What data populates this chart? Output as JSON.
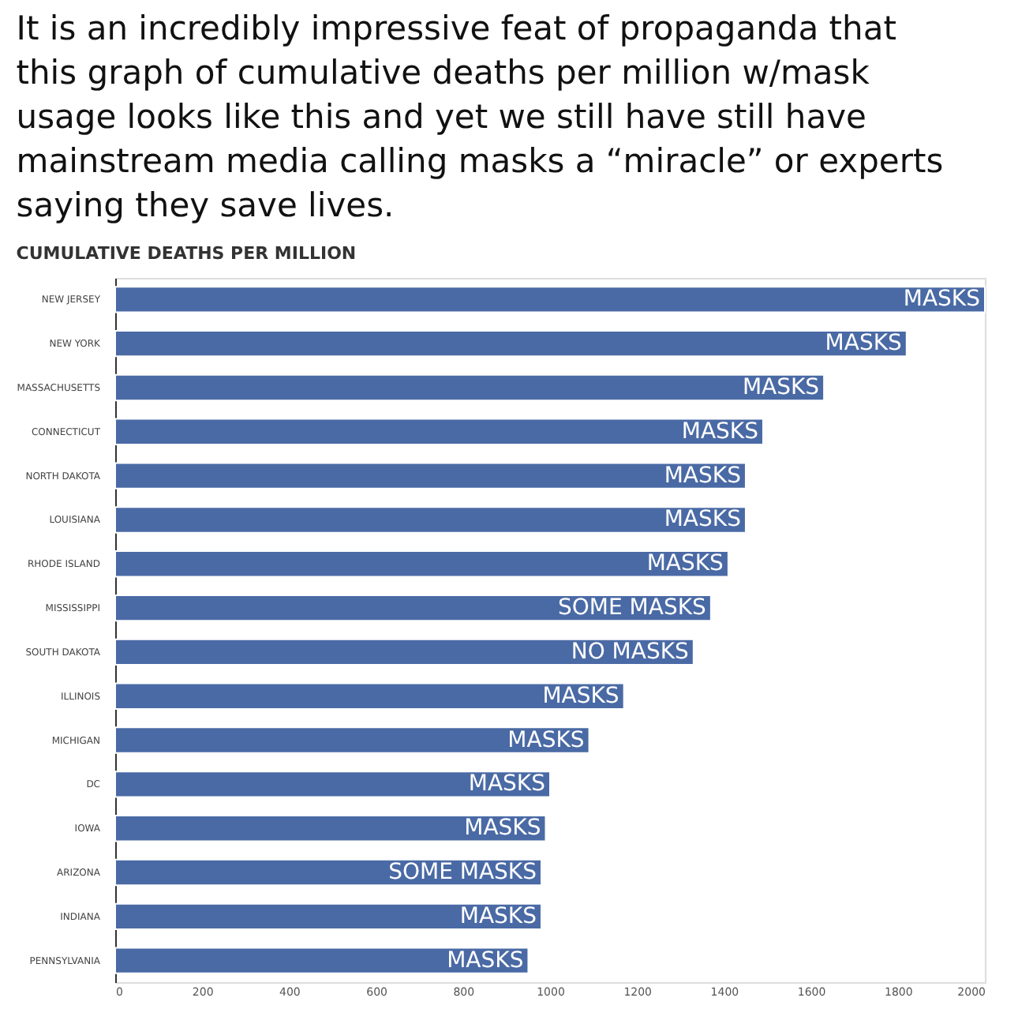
{
  "chart_data": {
    "type": "bar",
    "orientation": "horizontal",
    "title": "It is an incredibly impressive feat of propaganda that this graph of cumulative deaths per million w/mask usage looks like this and yet we still have still have mainstream media calling masks a “miracle” or experts saying they save lives.",
    "subtitle": "CUMULATIVE DEATHS PER MILLION",
    "categories": [
      "NEW JERSEY",
      "NEW YORK",
      "MASSACHUSETTS",
      "CONNECTICUT",
      "NORTH DAKOTA",
      "LOUISIANA",
      "RHODE ISLAND",
      "MISSISSIPPI",
      "SOUTH DAKOTA",
      "ILLINOIS",
      "MICHIGAN",
      "DC",
      "IOWA",
      "ARIZONA",
      "INDIANA",
      "PENNSYLVANIA"
    ],
    "values": [
      2000,
      1820,
      1630,
      1490,
      1450,
      1450,
      1410,
      1370,
      1330,
      1170,
      1090,
      1000,
      990,
      980,
      980,
      950
    ],
    "value_labels": [
      "MASKS",
      "MASKS",
      "MASKS",
      "MASKS",
      "MASKS",
      "MASKS",
      "MASKS",
      "SOME MASKS",
      "NO MASKS",
      "MASKS",
      "MASKS",
      "MASKS",
      "MASKS",
      "SOME MASKS",
      "MASKS",
      "MASKS"
    ],
    "color": "#4a6aa5",
    "xlim": [
      0,
      2000
    ],
    "xticks": [
      0,
      200,
      400,
      600,
      800,
      1000,
      1200,
      1400,
      1600,
      1800,
      2000
    ],
    "grid": false
  }
}
